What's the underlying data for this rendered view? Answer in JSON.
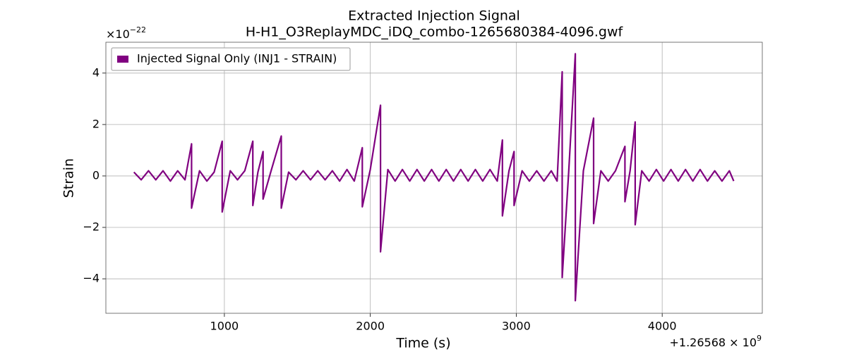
{
  "chart_data": {
    "type": "line",
    "title": "Extracted Injection Signal",
    "subtitle": "H-H1_O3ReplayMDC_iDQ_combo-1265680384-4096.gwf",
    "x_label": "Time (s)",
    "y_label": "Strain",
    "y_multiplier": {
      "base": "×10",
      "exponent": "−22"
    },
    "x_offset": {
      "base": "+1.26568 × 10",
      "exponent": "9"
    },
    "xlim": [
      188,
      4686
    ],
    "xticks": [
      1000,
      2000,
      3000,
      4000
    ],
    "ylim": [
      -5.34,
      5.2
    ],
    "yticks": [
      {
        "value": -4,
        "label": "−4"
      },
      {
        "value": -2,
        "label": "−2"
      },
      0,
      2,
      4
    ],
    "grid": true,
    "legend": "upper left",
    "series": [
      {
        "name": "Injected Signal Only (INJ1 - STRAIN)",
        "color": "#800080",
        "x": [
          380,
          430,
          480,
          530,
          580,
          630,
          680,
          730,
          775,
          775,
          830,
          880,
          930,
          985,
          985,
          1040,
          1090,
          1140,
          1195,
          1195,
          1230,
          1265,
          1265,
          1320,
          1390,
          1390,
          1440,
          1490,
          1540,
          1590,
          1640,
          1690,
          1740,
          1790,
          1840,
          1890,
          1945,
          1945,
          2000,
          2070,
          2070,
          2120,
          2170,
          2220,
          2270,
          2320,
          2370,
          2420,
          2470,
          2520,
          2570,
          2620,
          2670,
          2720,
          2770,
          2820,
          2870,
          2905,
          2905,
          2950,
          2985,
          2985,
          3040,
          3090,
          3140,
          3190,
          3240,
          3280,
          3315,
          3315,
          3360,
          3405,
          3405,
          3460,
          3530,
          3530,
          3580,
          3630,
          3680,
          3745,
          3745,
          3780,
          3815,
          3815,
          3860,
          3910,
          3960,
          4010,
          4060,
          4110,
          4160,
          4210,
          4260,
          4310,
          4360,
          4410,
          4460,
          4490
        ],
        "values": [
          0.15,
          -0.15,
          0.2,
          -0.15,
          0.2,
          -0.2,
          0.2,
          -0.15,
          1.25,
          -1.25,
          0.2,
          -0.2,
          0.15,
          1.35,
          -1.4,
          0.2,
          -0.15,
          0.2,
          1.35,
          -1.15,
          0.15,
          0.95,
          -0.9,
          0.2,
          1.55,
          -1.25,
          0.15,
          -0.15,
          0.2,
          -0.15,
          0.2,
          -0.15,
          0.2,
          -0.2,
          0.25,
          -0.2,
          1.1,
          -1.2,
          0.25,
          2.75,
          -2.95,
          0.25,
          -0.2,
          0.25,
          -0.2,
          0.25,
          -0.2,
          0.25,
          -0.2,
          0.25,
          -0.2,
          0.25,
          -0.2,
          0.25,
          -0.2,
          0.25,
          -0.2,
          1.4,
          -1.55,
          0.2,
          0.95,
          -1.15,
          0.2,
          -0.2,
          0.2,
          -0.2,
          0.2,
          -0.2,
          4.05,
          -3.95,
          0.2,
          4.75,
          -4.85,
          0.2,
          2.25,
          -1.85,
          0.2,
          -0.2,
          0.2,
          1.15,
          -1.0,
          0.2,
          2.1,
          -1.9,
          0.2,
          -0.2,
          0.25,
          -0.2,
          0.25,
          -0.2,
          0.25,
          -0.2,
          0.25,
          -0.2,
          0.2,
          -0.2,
          0.2,
          -0.2
        ]
      }
    ]
  }
}
